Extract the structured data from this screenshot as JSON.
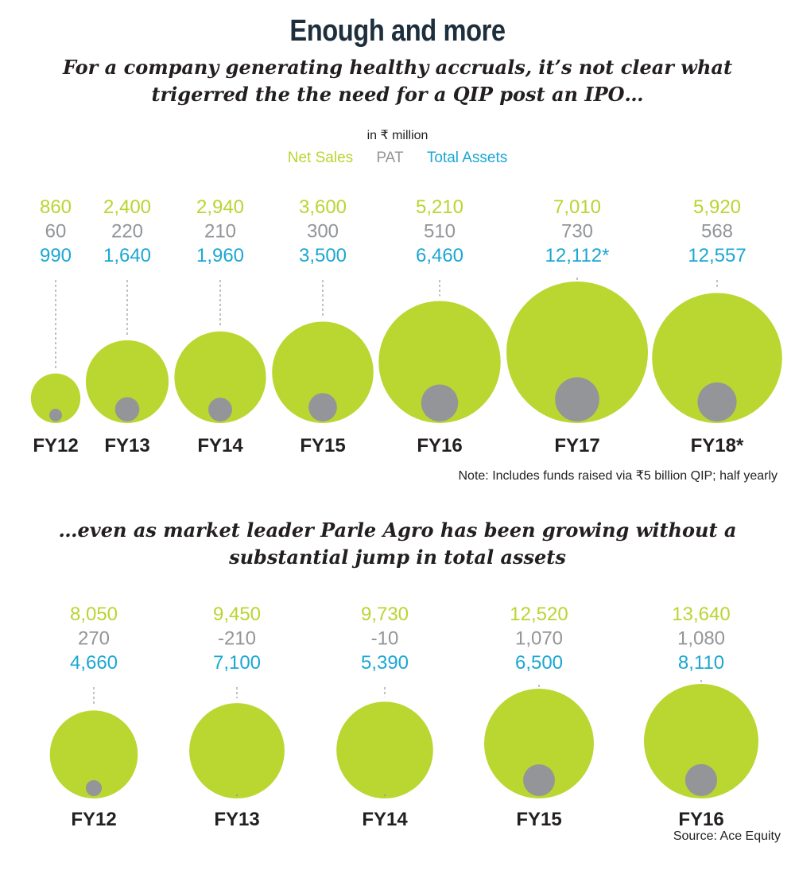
{
  "title": "Enough and more",
  "subtitle_1": "For a company generating healthy accruals, it’s not clear what trigerred the the need for a QIP post an IPO…",
  "units": "in ₹ million",
  "legend": {
    "net_sales": "Net Sales",
    "pat": "PAT",
    "total_assets": "Total Assets"
  },
  "colors": {
    "net_sales": "#b9d531",
    "pat": "#939598",
    "total_assets": "#1ba7d4",
    "circle_sales": "#bad631",
    "circle_pat": "#939598"
  },
  "note": "Note: Includes funds raised via ₹5 billion QIP; half yearly",
  "subtitle_2": "…even as market leader Parle Agro has been growing without a substantial jump in total assets",
  "source": "Source: Ace Equity",
  "chart_data": [
    {
      "type": "bubble",
      "categories": [
        "FY12",
        "FY13",
        "FY14",
        "FY15",
        "FY16",
        "FY17",
        "FY18*"
      ],
      "series": [
        {
          "name": "Net Sales",
          "values": [
            860,
            2400,
            2940,
            3600,
            5210,
            7010,
            5920
          ],
          "labels": [
            "860",
            "2,400",
            "2,940",
            "3,600",
            "5,210",
            "7,010",
            "5,920"
          ]
        },
        {
          "name": "PAT",
          "values": [
            60,
            220,
            210,
            300,
            510,
            730,
            568
          ],
          "labels": [
            "60",
            "220",
            "210",
            "300",
            "510",
            "730",
            "568"
          ]
        },
        {
          "name": "Total Assets",
          "values": [
            990,
            1640,
            1960,
            3500,
            6460,
            12112,
            12557
          ],
          "labels": [
            "990",
            "1,640",
            "1,960",
            "3,500",
            "6,460",
            "12,112*",
            "12,557"
          ]
        }
      ]
    },
    {
      "type": "bubble",
      "categories": [
        "FY12",
        "FY13",
        "FY14",
        "FY15",
        "FY16"
      ],
      "series": [
        {
          "name": "Net Sales",
          "values": [
            8050,
            9450,
            9730,
            12520,
            13640
          ],
          "labels": [
            "8,050",
            "9,450",
            "9,730",
            "12,520",
            "13,640"
          ]
        },
        {
          "name": "PAT",
          "values": [
            270,
            -210,
            -10,
            1070,
            1080
          ],
          "labels": [
            "270",
            "-210",
            "-10",
            "1,070",
            "1,080"
          ]
        },
        {
          "name": "Total Assets",
          "values": [
            4660,
            7100,
            5390,
            6500,
            8110
          ],
          "labels": [
            "4,660",
            "7,100",
            "5,390",
            "6,500",
            "8,110"
          ]
        }
      ]
    }
  ]
}
